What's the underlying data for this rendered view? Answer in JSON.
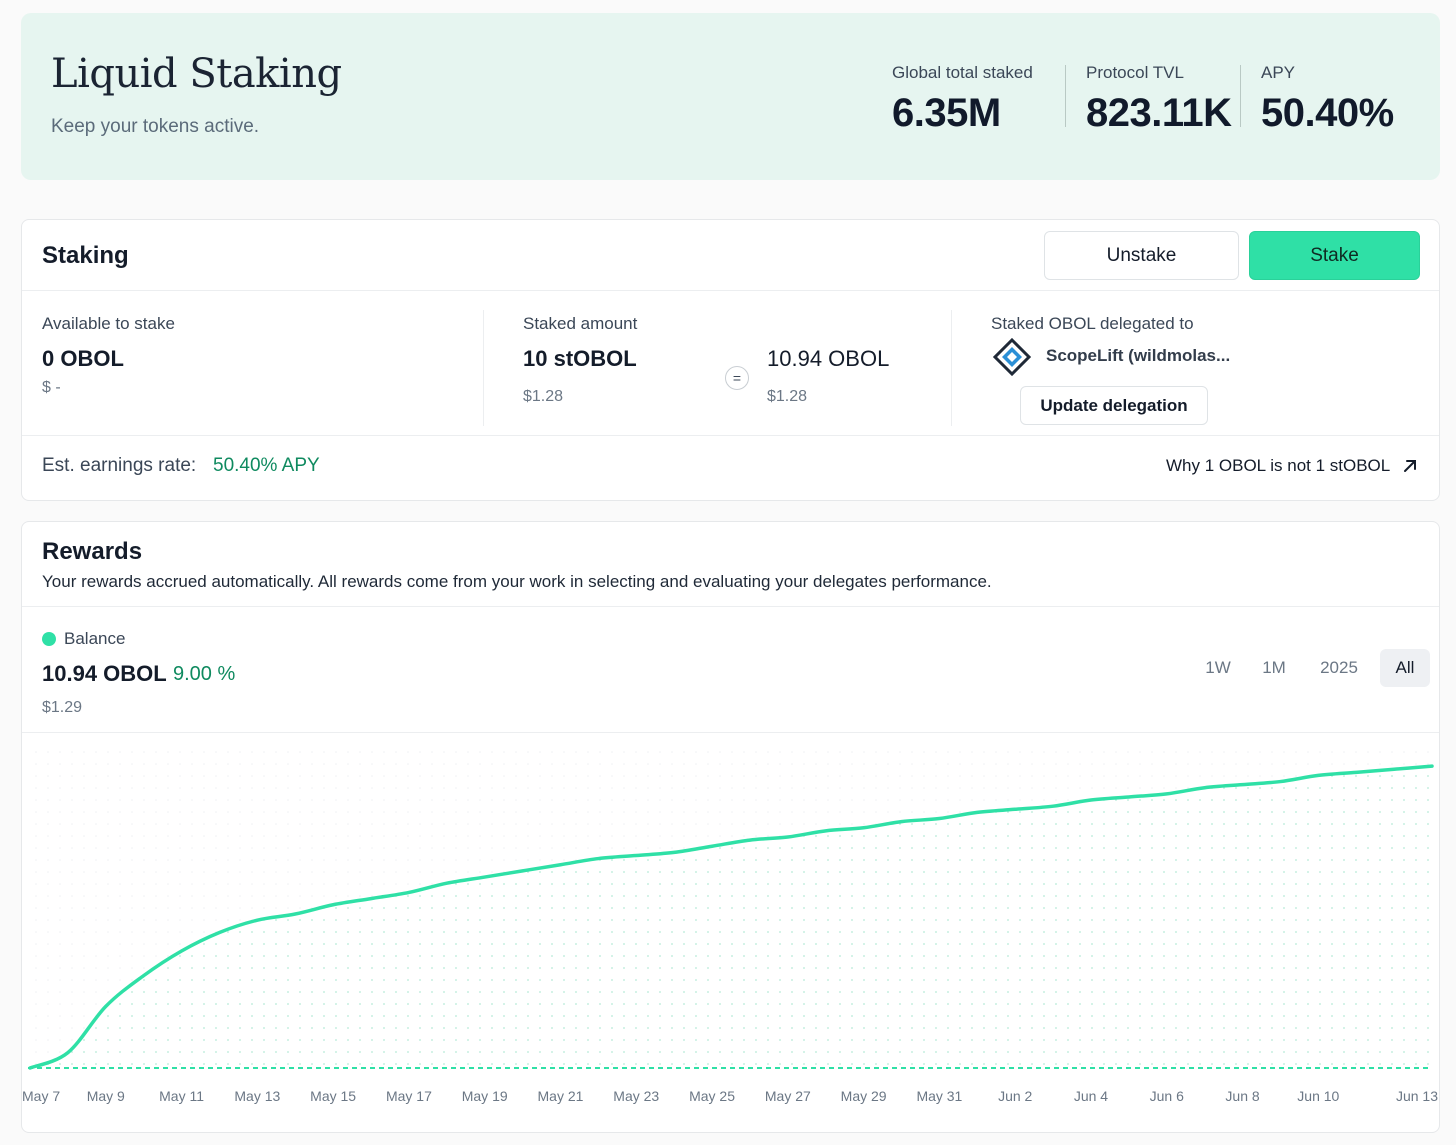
{
  "hero": {
    "title": "Liquid Staking",
    "subtitle": "Keep your tokens active.",
    "stats": [
      {
        "label": "Global total staked",
        "value": "6.35M"
      },
      {
        "label": "Protocol TVL",
        "value": "823.11K"
      },
      {
        "label": "APY",
        "value": "50.40%"
      }
    ]
  },
  "staking": {
    "title": "Staking",
    "unstake_label": "Unstake",
    "stake_label": "Stake",
    "available": {
      "label": "Available to stake",
      "value": "0 OBOL",
      "usd": "$ -"
    },
    "staked": {
      "label": "Staked amount",
      "value": "10 stOBOL",
      "usd": "$1.28",
      "equals": "=",
      "converted_value": "10.94 OBOL",
      "converted_usd": "$1.28"
    },
    "delegation": {
      "label": "Staked OBOL delegated to",
      "delegate_name": "ScopeLift (wildmolas...",
      "update_label": "Update delegation"
    },
    "earnings_label": "Est. earnings rate:",
    "earnings_value": "50.40% APY",
    "why_link": "Why 1 OBOL is not 1 stOBOL",
    "icons": {
      "delegate_logo": "scopelift-logo",
      "external": "arrow-up-right-icon"
    }
  },
  "rewards": {
    "title": "Rewards",
    "description": "Your rewards accrued automatically. All rewards come from your work in selecting and evaluating your delegates performance.",
    "legend_label": "Balance",
    "balance_value": "10.94 OBOL",
    "balance_change": "9.00 %",
    "balance_usd": "$1.29",
    "ranges": [
      "1W",
      "1M",
      "2025",
      "All"
    ],
    "active_range": "All"
  },
  "colors": {
    "accent": "#2fe0a6",
    "positive_text": "#0f8a5f",
    "hero_bg": "#e6f5f0"
  },
  "chart_data": {
    "type": "area",
    "series": [
      {
        "name": "Balance"
      }
    ],
    "x": [
      "May 7",
      "May 8",
      "May 9",
      "May 10",
      "May 11",
      "May 12",
      "May 13",
      "May 14",
      "May 15",
      "May 16",
      "May 17",
      "May 18",
      "May 19",
      "May 20",
      "May 21",
      "May 22",
      "May 23",
      "May 24",
      "May 25",
      "May 26",
      "May 27",
      "May 28",
      "May 29",
      "May 30",
      "May 31",
      "Jun 1",
      "Jun 2",
      "Jun 3",
      "Jun 4",
      "Jun 5",
      "Jun 6",
      "Jun 7",
      "Jun 8",
      "Jun 9",
      "Jun 10",
      "Jun 11",
      "Jun 12",
      "Jun 13"
    ],
    "y_relative": [
      0.0,
      0.05,
      0.2,
      0.3,
      0.38,
      0.44,
      0.48,
      0.5,
      0.53,
      0.55,
      0.57,
      0.6,
      0.62,
      0.64,
      0.66,
      0.68,
      0.69,
      0.7,
      0.72,
      0.74,
      0.75,
      0.77,
      0.78,
      0.8,
      0.81,
      0.83,
      0.84,
      0.85,
      0.87,
      0.88,
      0.89,
      0.91,
      0.92,
      0.93,
      0.95,
      0.96,
      0.97,
      0.98
    ],
    "tick_labels": [
      "May 7",
      "May 9",
      "May 11",
      "May 13",
      "May 15",
      "May 17",
      "May 19",
      "May 21",
      "May 23",
      "May 25",
      "May 27",
      "May 29",
      "May 31",
      "Jun 2",
      "Jun 4",
      "Jun 6",
      "Jun 8",
      "Jun 10",
      "Jun 13"
    ],
    "grid": "dotted"
  }
}
